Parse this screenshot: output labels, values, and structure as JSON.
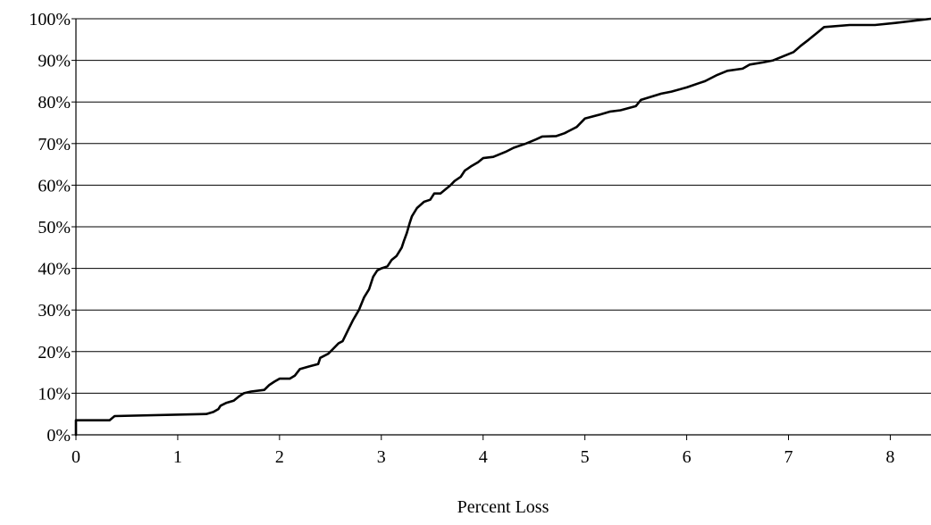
{
  "chart_data": {
    "type": "line",
    "title": "",
    "xlabel": "Percent Loss",
    "ylabel": "",
    "xlim": [
      0,
      8.4
    ],
    "ylim": [
      0,
      100
    ],
    "x_ticks": [
      0,
      1,
      2,
      3,
      4,
      5,
      6,
      7,
      8
    ],
    "x_tick_labels": [
      "0",
      "1",
      "2",
      "3",
      "4",
      "5",
      "6",
      "7",
      "8"
    ],
    "y_ticks": [
      0,
      10,
      20,
      30,
      40,
      50,
      60,
      70,
      80,
      90,
      100
    ],
    "y_tick_labels": [
      "0%",
      "10%",
      "20%",
      "30%",
      "40%",
      "50%",
      "60%",
      "70%",
      "80%",
      "90%",
      "100%"
    ],
    "grid": {
      "horizontal": true,
      "vertical": false
    },
    "legend": "none",
    "colors": {
      "line": "#000000",
      "grid": "#000000",
      "axis": "#000000"
    },
    "series": [
      {
        "x": [
          0,
          0,
          0.33,
          0.38,
          1.28,
          1.35,
          1.4,
          1.42,
          1.48,
          1.55,
          1.6,
          1.65,
          1.72,
          1.85,
          1.9,
          1.95,
          2.0,
          2.1,
          2.15,
          2.2,
          2.3,
          2.38,
          2.4,
          2.48,
          2.52,
          2.58,
          2.62,
          2.68,
          2.72,
          2.78,
          2.83,
          2.88,
          2.92,
          2.96,
          3.0,
          3.06,
          3.1,
          3.15,
          3.2,
          3.22,
          3.25,
          3.28,
          3.3,
          3.35,
          3.42,
          3.48,
          3.52,
          3.58,
          3.68,
          3.72,
          3.78,
          3.82,
          3.85,
          3.88,
          3.95,
          4.0,
          4.1,
          4.22,
          4.3,
          4.42,
          4.52,
          4.58,
          4.72,
          4.8,
          4.88,
          4.92,
          5.0,
          5.15,
          5.25,
          5.35,
          5.5,
          5.55,
          5.75,
          5.85,
          6.0,
          6.12,
          6.18,
          6.3,
          6.4,
          6.55,
          6.62,
          6.75,
          6.85,
          6.95,
          7.05,
          7.12,
          7.2,
          7.3,
          7.35,
          7.6,
          7.85,
          8.05,
          8.4
        ],
        "y": [
          0,
          3.5,
          3.5,
          4.5,
          5.0,
          5.5,
          6.2,
          7.0,
          7.7,
          8.2,
          9.2,
          10.0,
          10.4,
          10.8,
          12.0,
          12.8,
          13.5,
          13.5,
          14.2,
          15.8,
          16.5,
          17.0,
          18.5,
          19.5,
          20.5,
          22.0,
          22.5,
          25.5,
          27.5,
          30.0,
          33.0,
          35.0,
          38.0,
          39.5,
          40.0,
          40.5,
          42.0,
          43.0,
          45.0,
          46.5,
          48.5,
          51.0,
          52.5,
          54.5,
          56.0,
          56.5,
          58.0,
          58.0,
          60.0,
          61.0,
          62.0,
          63.5,
          64.0,
          64.5,
          65.5,
          66.5,
          66.8,
          68.0,
          69.0,
          70.0,
          71.0,
          71.7,
          71.8,
          72.5,
          73.5,
          74.0,
          76.0,
          77.0,
          77.7,
          78.0,
          79.0,
          80.5,
          82.0,
          82.5,
          83.5,
          84.5,
          85.0,
          86.5,
          87.5,
          88.0,
          89.0,
          89.5,
          90.0,
          91.0,
          92.0,
          93.5,
          95.0,
          97.0,
          98.0,
          98.5,
          98.5,
          99.0,
          100.0
        ]
      }
    ]
  }
}
